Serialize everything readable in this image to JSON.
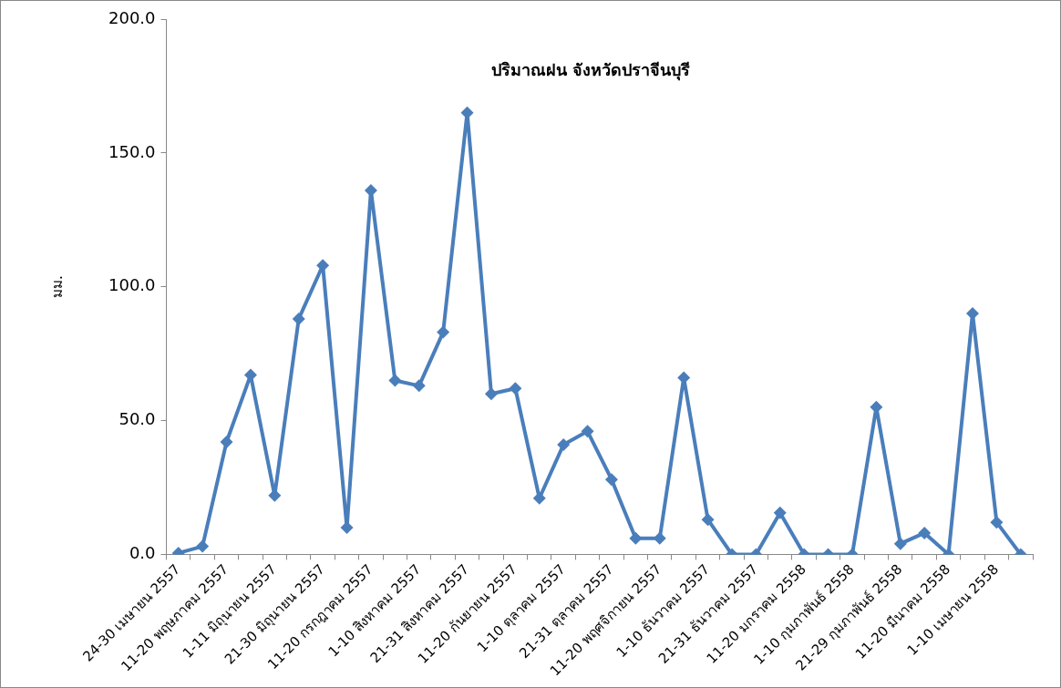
{
  "chart_data": {
    "type": "line",
    "title": "ปริมาณฝน จังหวัดปราจีนบุรี",
    "ylabel": "มม.",
    "categories": [
      "24-30 เมษายน 2557",
      null,
      "11-20 พฤษภาคม 2557",
      null,
      "1-11 มิถุนายน 2557",
      null,
      "21-30 มิถุนายน 2557",
      null,
      "11-20 กรกฎาคม 2557",
      null,
      "1-10 สิงหาคม 2557",
      null,
      "21-31 สิงหาคม 2557",
      null,
      "11-20 กันยายน 2557",
      null,
      "1-10 ตุลาคม 2557",
      null,
      "21-31 ตุลาคม 2557",
      null,
      "11-20 พฤศจิกายน 2557",
      null,
      "1-10 ธันวาคม 2557",
      null,
      "21-31 ธันวาคม 2557",
      null,
      "11-20 มกราคม 2558",
      null,
      "1-10 กุมภาพันธ์ 2558",
      null,
      "21-29 กุมภาพันธ์ 2558",
      null,
      "11-20 มีนาคม 2558",
      null,
      "1-10 เมษายน 2558",
      null
    ],
    "series": [
      {
        "color": "#4a7ebb",
        "values": [
          0.5,
          3,
          42,
          67,
          22,
          88,
          108,
          10,
          136,
          65,
          63,
          83,
          165,
          60,
          62,
          21,
          41,
          46,
          28,
          6,
          6,
          66,
          13,
          0,
          0,
          15.5,
          0,
          0,
          0,
          55,
          4,
          8,
          0,
          90,
          12,
          0
        ]
      }
    ],
    "ylim": [
      0,
      200
    ],
    "yticks": [
      {
        "value": 0,
        "label": "0.0"
      },
      {
        "value": 50,
        "label": "50.0"
      },
      {
        "value": 100,
        "label": "100.0"
      },
      {
        "value": 150,
        "label": "150.0"
      },
      {
        "value": 200,
        "label": "200.0"
      }
    ],
    "grid": false,
    "legend": false,
    "marker": "diamond",
    "line_style": "solid"
  }
}
